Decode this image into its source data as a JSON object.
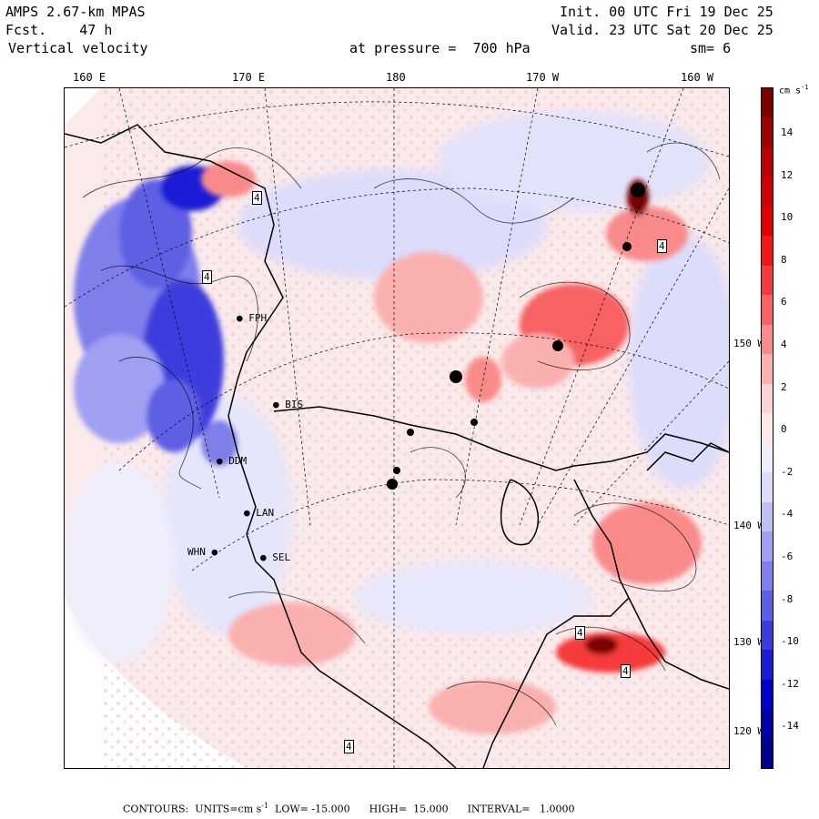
{
  "header": {
    "model": "AMPS 2.67-km MPAS",
    "forecast": "Fcst.    47 h",
    "field": "Vertical velocity",
    "init": "Init. 00 UTC Fri 19 Dec 25",
    "valid": "Valid. 23 UTC Sat 20 Dec 25",
    "pressure": "at pressure =  700 hPa",
    "smoothing": "sm= 6"
  },
  "longitude_labels": [
    "160 E",
    "170 E",
    "180",
    "170 W",
    "160 W"
  ],
  "latitude_labels": [
    "150 W",
    "140 W",
    "130 W",
    "120 W"
  ],
  "colorbar": {
    "units": "cm s",
    "units_exp": "-1",
    "ticks": [
      "14",
      "12",
      "10",
      "8",
      "6",
      "4",
      "2",
      "0",
      "-2",
      "-4",
      "-6",
      "-8",
      "-10",
      "-12",
      "-14"
    ],
    "colors": [
      "#7a0000",
      "#9c0000",
      "#b80000",
      "#cc0000",
      "#e00000",
      "#f21616",
      "#f53b3b",
      "#f86262",
      "#f98a8a",
      "#fbb0b0",
      "#fcd4d4",
      "#fde9e9",
      "#eeeefd",
      "#dcdcfb",
      "#c0c0f7",
      "#a0a0f2",
      "#7f7fec",
      "#5e5ee4",
      "#3c3cdd",
      "#1c1cd6",
      "#0000c8",
      "#0000a8",
      "#00008a"
    ]
  },
  "stations": [
    {
      "label": "BIS"
    },
    {
      "label": "DDM"
    },
    {
      "label": "LAN"
    },
    {
      "label": "WHN"
    },
    {
      "label": "SEL"
    },
    {
      "label": "FPH"
    }
  ],
  "markers": [
    "4",
    "4",
    "4",
    "4",
    "4",
    "4"
  ],
  "footer": {
    "contours": "CONTOURS:  UNITS=cm s",
    "exp": "-1",
    "rest": "  LOW= -15.000      HIGH=  15.000      INTERVAL=   1.0000"
  }
}
